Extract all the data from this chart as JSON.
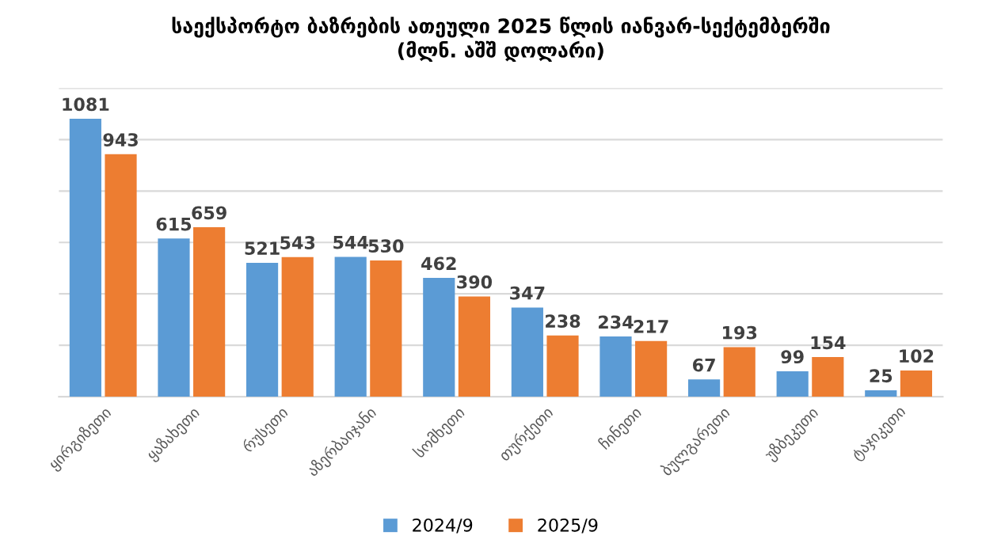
{
  "chart_data": {
    "type": "bar",
    "title": "საექსპორტო ბაზრების ათეული 2025 წლის იანვარ-სექტემბერში\n(მლნ. აშშ დოლარი)",
    "categories": [
      "ყირგიზეთი",
      "ყაზახეთი",
      "რუსეთი",
      "აზერბაიჯანი",
      "სომხეთი",
      "თურქეთი",
      "ჩინეთი",
      "ბულგარეთი",
      "უზბეკეთი",
      "ტაჯიკეთი"
    ],
    "series": [
      {
        "name": "2024/9",
        "color": "#5b9bd5",
        "values": [
          1081,
          615,
          521,
          544,
          462,
          347,
          234,
          67,
          99,
          25
        ]
      },
      {
        "name": "2025/9",
        "color": "#ed7d31",
        "values": [
          943,
          659,
          543,
          530,
          390,
          238,
          217,
          193,
          154,
          102
        ]
      }
    ],
    "ylim": [
      0,
      1200
    ],
    "yticks": [
      {
        "value": 0,
        "label": null
      },
      {
        "value": 200,
        "label": null
      },
      {
        "value": 400,
        "label": null
      },
      {
        "value": 600,
        "label": null
      },
      {
        "value": 800,
        "label": null
      },
      {
        "value": 1000,
        "label": null
      },
      {
        "value": 1200,
        "label": null
      }
    ],
    "tick_labels": "x",
    "grid": "y",
    "legend": "bottom",
    "data_labels": true
  }
}
